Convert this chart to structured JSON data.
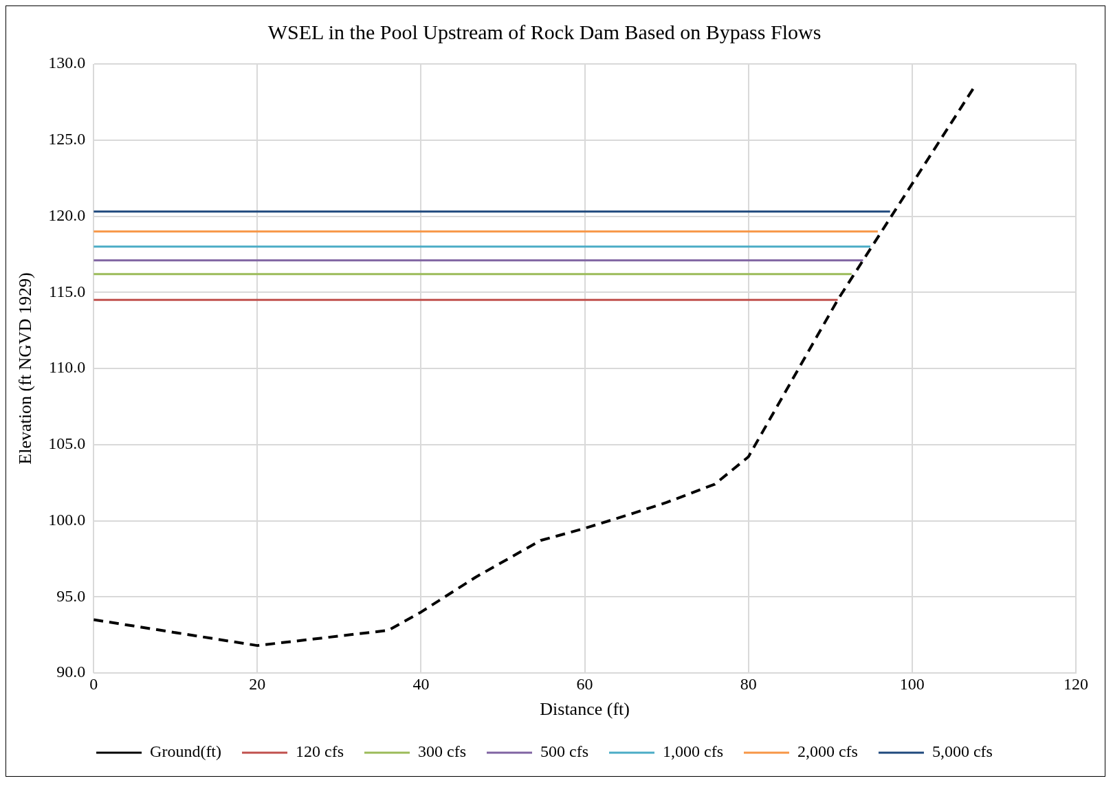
{
  "chart_data": {
    "type": "line",
    "title": "WSEL in the Pool Upstream of Rock Dam Based on Bypass Flows",
    "xlabel": "Distance (ft)",
    "ylabel": "Elevation (ft NGVD 1929)",
    "xlim": [
      0,
      120
    ],
    "xticks": [
      0,
      20,
      40,
      60,
      80,
      100,
      120
    ],
    "ylim": [
      90,
      130
    ],
    "yticks": [
      {
        "value": 90,
        "label": "90.0"
      },
      {
        "value": 95,
        "label": "95.0"
      },
      {
        "value": 100,
        "label": "100.0"
      },
      {
        "value": 105,
        "label": "105.0"
      },
      {
        "value": 110,
        "label": "110.0"
      },
      {
        "value": 115,
        "label": "115.0"
      },
      {
        "value": 120,
        "label": "120.0"
      },
      {
        "value": 125,
        "label": "125.0"
      },
      {
        "value": 130,
        "label": "130.0"
      }
    ],
    "grid": true,
    "legend": "bottom",
    "marker": "none",
    "series": [
      {
        "name": "Ground(ft)",
        "color": "#000000",
        "line_style": "dashed",
        "x": [
          0,
          20,
          36,
          40,
          46.7,
          54.6,
          60,
          66,
          70,
          75.9,
          80,
          90.9,
          107.6
        ],
        "values": [
          93.5,
          91.8,
          92.8,
          94.0,
          96.3,
          98.7,
          99.5,
          100.5,
          101.2,
          102.4,
          104.2,
          114.5,
          128.5
        ]
      },
      {
        "name": "120 cfs",
        "color": "#c0504d",
        "x": [
          0,
          90.9
        ],
        "values": [
          114.5,
          114.5
        ]
      },
      {
        "name": "300 cfs",
        "color": "#9bbb59",
        "x": [
          0,
          92.6
        ],
        "values": [
          116.2,
          116.2
        ]
      },
      {
        "name": "500 cfs",
        "color": "#8064a2",
        "x": [
          0,
          94.0
        ],
        "values": [
          117.1,
          117.1
        ]
      },
      {
        "name": "1,000 cfs",
        "color": "#4bacc6",
        "x": [
          0,
          94.9
        ],
        "values": [
          118.0,
          118.0
        ]
      },
      {
        "name": "2,000 cfs",
        "color": "#f79646",
        "x": [
          0,
          95.8
        ],
        "values": [
          119.0,
          119.0
        ]
      },
      {
        "name": "5,000 cfs",
        "color": "#1f497d",
        "x": [
          0,
          97.3
        ],
        "values": [
          120.3,
          120.3
        ]
      }
    ]
  }
}
